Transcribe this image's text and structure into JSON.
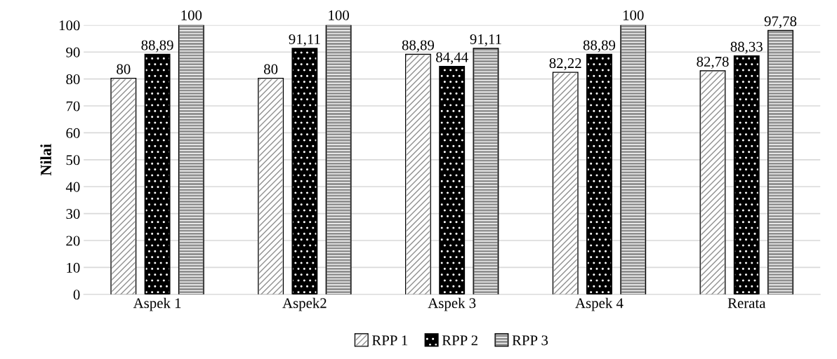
{
  "chart_data": {
    "type": "bar",
    "ylabel": "Nilai",
    "categories": [
      "Aspek 1",
      "Aspek2",
      "Aspek 3",
      "Aspek 4",
      "Rerata"
    ],
    "series": [
      {
        "name": "RPP 1",
        "color": "#ffffff",
        "values": [
          80,
          80,
          88.89,
          82.22,
          82.78
        ],
        "value_labels": [
          "80",
          "80",
          "88,89",
          "82,22",
          "82,78"
        ]
      },
      {
        "name": "RPP 2",
        "color": "#000000",
        "values": [
          88.89,
          91.11,
          84.44,
          88.89,
          88.33
        ],
        "value_labels": [
          "88,89",
          "91,11",
          "84,44",
          "88,89",
          "88,33"
        ]
      },
      {
        "name": "RPP 3",
        "color": "#909090",
        "values": [
          100,
          100,
          91.11,
          100,
          97.78
        ],
        "value_labels": [
          "100",
          "100",
          "91,11",
          "100",
          "97,78"
        ]
      }
    ],
    "ylim": [
      0,
      100
    ],
    "yticks": [
      0,
      10,
      20,
      30,
      40,
      50,
      60,
      70,
      80,
      90,
      100
    ],
    "grid": "y",
    "legend": "bottom"
  }
}
